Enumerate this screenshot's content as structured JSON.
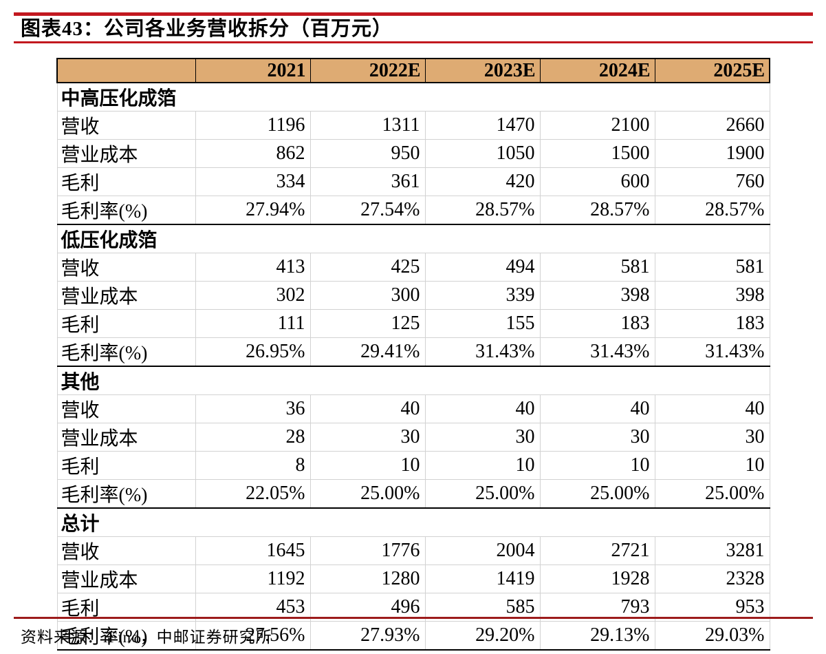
{
  "header": {
    "title": "图表43：公司各业务营收拆分（百万元）"
  },
  "colors": {
    "accent_red": "#c2181f",
    "footer_rule_red": "#9c1b1b",
    "table_header_bg": "#deab73",
    "grid_gray": "#d2d2d2",
    "border_black": "#000000"
  },
  "chart_data": {
    "type": "table",
    "title": "公司各业务营收拆分（百万元）",
    "figure_label": "图表43",
    "unit": "百万元",
    "columns": [
      "",
      "2021",
      "2022E",
      "2023E",
      "2024E",
      "2025E"
    ],
    "sections": [
      {
        "name": "中高压化成箔",
        "rows": [
          {
            "label": "营收",
            "values": [
              "1196",
              "1311",
              "1470",
              "2100",
              "2660"
            ]
          },
          {
            "label": "营业成本",
            "values": [
              "862",
              "950",
              "1050",
              "1500",
              "1900"
            ]
          },
          {
            "label": "毛利",
            "values": [
              "334",
              "361",
              "420",
              "600",
              "760"
            ]
          },
          {
            "label": "毛利率(%)",
            "values": [
              "27.94%",
              "27.54%",
              "28.57%",
              "28.57%",
              "28.57%"
            ]
          }
        ]
      },
      {
        "name": "低压化成箔",
        "rows": [
          {
            "label": "营收",
            "values": [
              "413",
              "425",
              "494",
              "581",
              "581"
            ]
          },
          {
            "label": "营业成本",
            "values": [
              "302",
              "300",
              "339",
              "398",
              "398"
            ]
          },
          {
            "label": "毛利",
            "values": [
              "111",
              "125",
              "155",
              "183",
              "183"
            ]
          },
          {
            "label": "毛利率(%)",
            "values": [
              "26.95%",
              "29.41%",
              "31.43%",
              "31.43%",
              "31.43%"
            ]
          }
        ]
      },
      {
        "name": "其他",
        "rows": [
          {
            "label": "营收",
            "values": [
              "36",
              "40",
              "40",
              "40",
              "40"
            ]
          },
          {
            "label": "营业成本",
            "values": [
              "28",
              "30",
              "30",
              "30",
              "30"
            ]
          },
          {
            "label": "毛利",
            "values": [
              "8",
              "10",
              "10",
              "10",
              "10"
            ]
          },
          {
            "label": "毛利率(%)",
            "values": [
              "22.05%",
              "25.00%",
              "25.00%",
              "25.00%",
              "25.00%"
            ]
          }
        ]
      },
      {
        "name": "总计",
        "rows": [
          {
            "label": "营收",
            "values": [
              "1645",
              "1776",
              "2004",
              "2721",
              "3281"
            ]
          },
          {
            "label": "营业成本",
            "values": [
              "1192",
              "1280",
              "1419",
              "1928",
              "2328"
            ]
          },
          {
            "label": "毛利",
            "values": [
              "453",
              "496",
              "585",
              "793",
              "953"
            ]
          },
          {
            "label": "毛利率(%)",
            "values": [
              "27.56%",
              "27.93%",
              "29.20%",
              "29.13%",
              "29.03%"
            ]
          }
        ]
      }
    ]
  },
  "footer": {
    "source": "资料来源：iFind，中邮证券研究所"
  }
}
